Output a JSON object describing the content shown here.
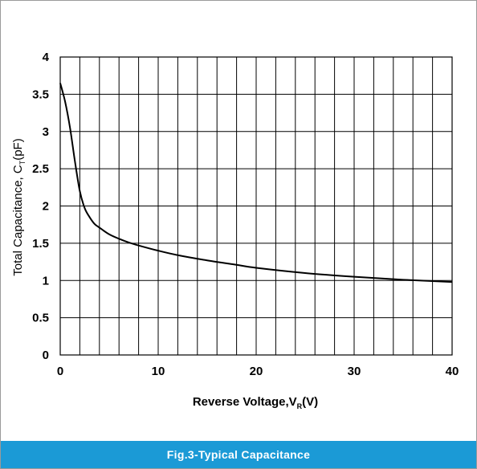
{
  "chart_data": {
    "type": "line",
    "title": "",
    "xlabel": {
      "text": "Reverse Voltage,V",
      "sub": "R",
      "suffix": "(V)"
    },
    "ylabel": {
      "text": "Total Capacitance, C",
      "sub": "T",
      "suffix": "(pF)"
    },
    "xlim": [
      0,
      40
    ],
    "ylim": [
      0,
      4
    ],
    "x_ticks": [
      "0",
      "10",
      "20",
      "30",
      "40"
    ],
    "y_ticks": [
      "0",
      "0.5",
      "1",
      "1.5",
      "2",
      "2.5",
      "3",
      "3.5",
      "4"
    ],
    "grid": true,
    "series": [
      {
        "x": [
          0,
          0.5,
          1,
          1.5,
          2,
          2.5,
          3,
          3.5,
          4,
          5,
          6,
          7,
          8,
          10,
          12,
          15,
          18,
          20,
          25,
          30,
          35,
          40
        ],
        "y": [
          3.65,
          3.4,
          3.05,
          2.6,
          2.2,
          1.97,
          1.85,
          1.76,
          1.71,
          1.62,
          1.56,
          1.51,
          1.47,
          1.4,
          1.34,
          1.27,
          1.21,
          1.17,
          1.1,
          1.05,
          1.01,
          0.98
        ],
        "color": "#000000"
      }
    ]
  },
  "caption": "Fig.3-Typical  Capacitance"
}
